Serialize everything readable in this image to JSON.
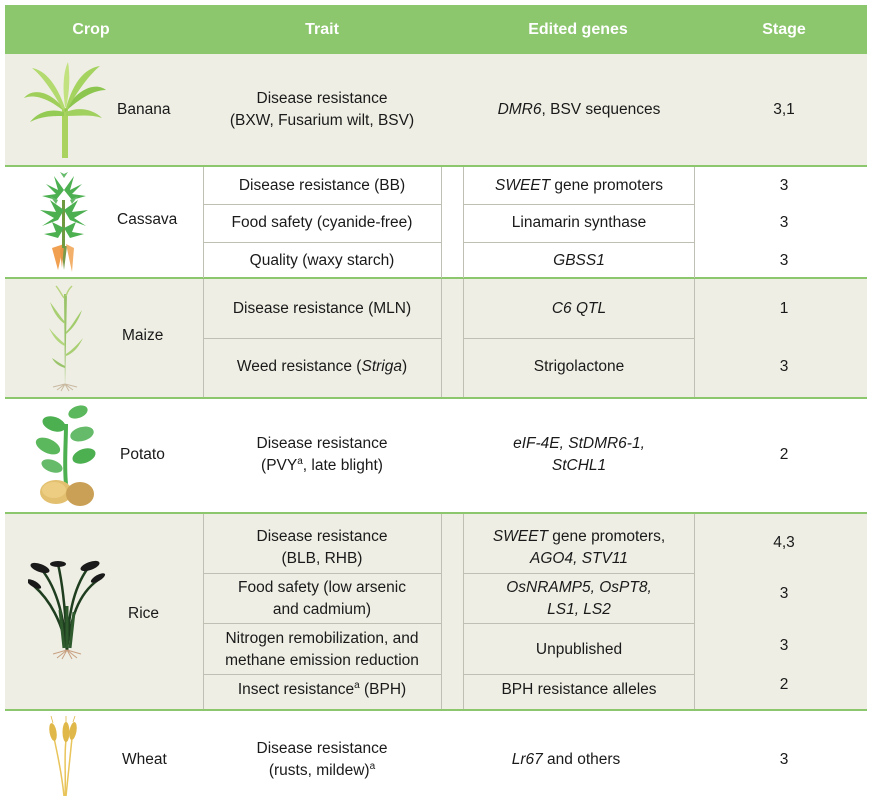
{
  "headers": {
    "crop": "Crop",
    "trait": "Trait",
    "genes": "Edited genes",
    "stage": "Stage"
  },
  "banana": {
    "name": "Banana",
    "trait_l1": "Disease resistance",
    "trait_l2": "(BXW, Fusarium wilt, BSV)",
    "gene_italic": "DMR6",
    "gene_rest": ", BSV sequences",
    "stage": "3,1"
  },
  "cassava": {
    "name": "Cassava",
    "rows": [
      {
        "trait": "Disease resistance (BB)",
        "gene_italic": "SWEET",
        "gene_rest": " gene promoters",
        "stage": "3"
      },
      {
        "trait": "Food safety (cyanide-free)",
        "gene": "Linamarin synthase",
        "stage": "3"
      },
      {
        "trait": "Quality (waxy starch)",
        "gene_italic": "GBSS1",
        "stage": "3"
      }
    ]
  },
  "maize": {
    "name": "Maize",
    "rows": [
      {
        "trait": "Disease resistance (MLN)",
        "gene_italic": "C6 QTL",
        "stage": "1"
      },
      {
        "trait_pre": "Weed resistance (",
        "trait_italic": "Striga",
        "trait_post": ")",
        "gene": "Strigolactone",
        "stage": "3"
      }
    ]
  },
  "potato": {
    "name": "Potato",
    "trait_l1": "Disease resistance",
    "trait_l2_pre": "(PVY",
    "trait_l2_sup": "a",
    "trait_l2_post": ", late blight)",
    "gene_l1": "eIF-4E, StDMR6-1,",
    "gene_l2": "StCHL1",
    "stage": "2"
  },
  "rice": {
    "name": "Rice",
    "r1": {
      "trait_l1": "Disease resistance",
      "trait_l2": "(BLB, RHB)",
      "gene_l1_italic": "SWEET",
      "gene_l1_rest": " gene promoters,",
      "gene_l2": "AGO4, STV11",
      "stage": "4,3"
    },
    "r2": {
      "trait_l1": "Food safety (low arsenic",
      "trait_l2": "and cadmium)",
      "gene_l1": "OsNRAMP5, OsPT8,",
      "gene_l2": "LS1, LS2",
      "stage": "3"
    },
    "r3": {
      "trait_l1": "Nitrogen remobilization, and",
      "trait_l2": "methane emission reduction",
      "gene": "Unpublished",
      "stage": "3"
    },
    "r4": {
      "trait_pre": "Insect resistance",
      "trait_sup": "a",
      "trait_post": " (BPH)",
      "gene": "BPH resistance alleles",
      "stage": "2"
    }
  },
  "wheat": {
    "name": "Wheat",
    "trait_l1": "Disease resistance",
    "trait_l2": "(rusts, mildew)",
    "trait_l2_sup": "a",
    "gene_italic": "Lr67",
    "gene_rest": " and others",
    "stage": "3"
  },
  "colors": {
    "header": "#8cc66d",
    "band": "#eeeee4",
    "plant_green": "#5cb85c",
    "tuber": "#d9b060",
    "root": "#f0a050"
  }
}
